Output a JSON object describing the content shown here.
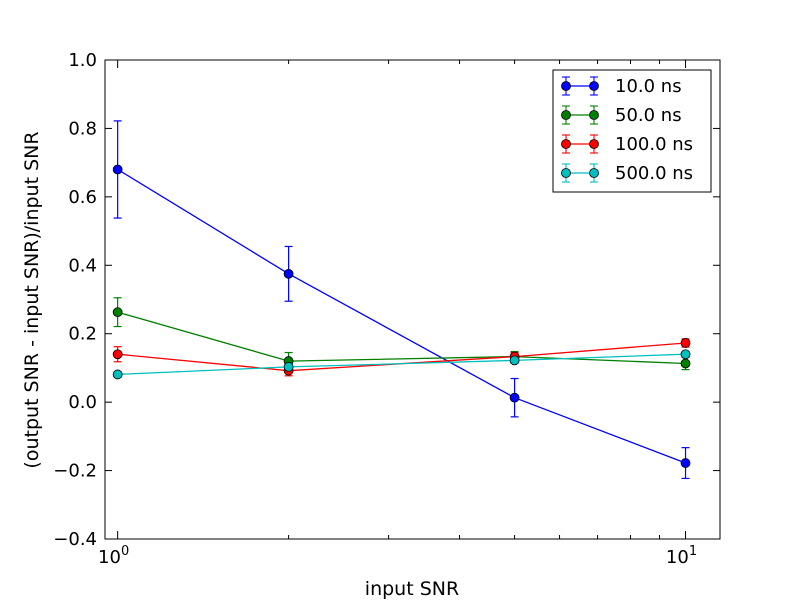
{
  "chart_data": {
    "type": "line",
    "x_scale": "log",
    "xlabel": "input SNR",
    "ylabel": "(output SNR - input SNR)/input SNR",
    "xlim": [
      0.95,
      11.5
    ],
    "ylim": [
      -0.4,
      1.0
    ],
    "y_ticks": [
      "−0.4",
      "−0.2",
      "0.0",
      "0.2",
      "0.4",
      "0.6",
      "0.8",
      "1.0"
    ],
    "y_tick_values": [
      -0.4,
      -0.2,
      0.0,
      0.2,
      0.4,
      0.6,
      0.8,
      1.0
    ],
    "x_major_ticks": [
      {
        "value": 1,
        "base": "10",
        "exp": "0"
      },
      {
        "value": 10,
        "base": "10",
        "exp": "1"
      }
    ],
    "x_minor_ticks": [
      2,
      3,
      4,
      5,
      6,
      7,
      8,
      9
    ],
    "legend_position": "upper right",
    "grid": false,
    "x": [
      1,
      2,
      5,
      10
    ],
    "series": [
      {
        "name": "10.0 ns",
        "color": "#0000ff",
        "values": [
          0.68,
          0.375,
          0.013,
          -0.178
        ],
        "errors": [
          0.142,
          0.08,
          0.056,
          0.045
        ]
      },
      {
        "name": "50.0 ns",
        "color": "#008000",
        "values": [
          0.263,
          0.12,
          0.133,
          0.113
        ],
        "errors": [
          0.042,
          0.025,
          0.015,
          0.018
        ]
      },
      {
        "name": "100.0 ns",
        "color": "#ff0000",
        "values": [
          0.14,
          0.092,
          0.133,
          0.173
        ],
        "errors": [
          0.022,
          0.015,
          0.012,
          0.012
        ]
      },
      {
        "name": "500.0 ns",
        "color": "#00bfbf",
        "values": [
          0.081,
          0.103,
          0.122,
          0.14
        ],
        "errors": [
          0.008,
          0.008,
          0.008,
          0.008
        ]
      }
    ]
  }
}
